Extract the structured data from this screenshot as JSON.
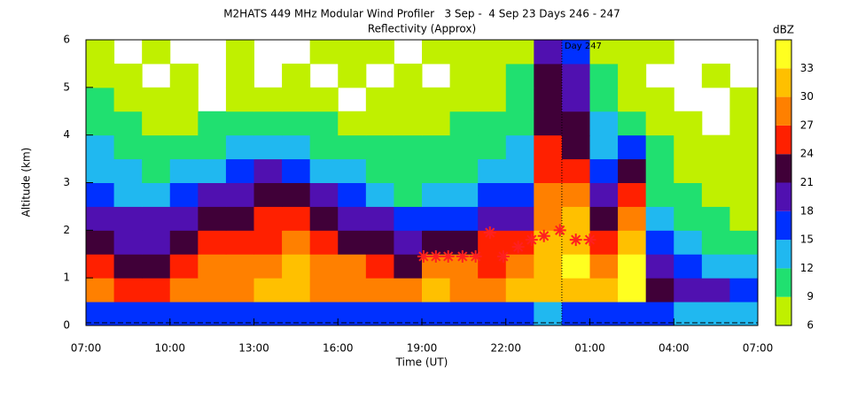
{
  "chart_data": {
    "type": "heatmap",
    "title": "M2HATS 449 MHz Modular Wind Profiler   3 Sep -  4 Sep 23 Days 246 - 247",
    "subtitle": "Reflectivity (Approx)",
    "xlabel": "Time (UT)",
    "ylabel": "Altitude (km)",
    "xlim": [
      0,
      24
    ],
    "xticks": [
      {
        "value": 0,
        "label": "07:00"
      },
      {
        "value": 3,
        "label": "10:00"
      },
      {
        "value": 6,
        "label": "13:00"
      },
      {
        "value": 9,
        "label": "16:00"
      },
      {
        "value": 12,
        "label": "19:00"
      },
      {
        "value": 15,
        "label": "22:00"
      },
      {
        "value": 18,
        "label": "01:00"
      },
      {
        "value": 21,
        "label": "04:00"
      },
      {
        "value": 24,
        "label": "07:00"
      }
    ],
    "ylim": [
      0,
      6
    ],
    "yticks": [
      0,
      1,
      2,
      3,
      4,
      5,
      6
    ],
    "x_bins": [
      0,
      1,
      2,
      3,
      4,
      5,
      6,
      7,
      8,
      9,
      10,
      11,
      12,
      13,
      14,
      15,
      16,
      17,
      18,
      19,
      20,
      21,
      22,
      23,
      24
    ],
    "y_bins": [
      0,
      0.5,
      1,
      1.5,
      2,
      2.5,
      3,
      3.5,
      4,
      4.5,
      5,
      5.5,
      6
    ],
    "z": [
      [
        15,
        15,
        15,
        15,
        15,
        15,
        15,
        15,
        15,
        15,
        15,
        15,
        15,
        15,
        15,
        15,
        14,
        15,
        15,
        15,
        15,
        14,
        14,
        14
      ],
      [
        27,
        26,
        26,
        28,
        29,
        28,
        30,
        30,
        29,
        29,
        28,
        27,
        30,
        29,
        28,
        30,
        31,
        32,
        30,
        33,
        21,
        19,
        18,
        17
      ],
      [
        24,
        21,
        22,
        25,
        28,
        27,
        29,
        30,
        28,
        28,
        26,
        23,
        29,
        27,
        26,
        29,
        31,
        33,
        29,
        33,
        18,
        16,
        12,
        13
      ],
      [
        22,
        20,
        20,
        22,
        24,
        24,
        26,
        27,
        24,
        23,
        21,
        20,
        22,
        22,
        24,
        24,
        30,
        32,
        26,
        31,
        15,
        12,
        10,
        9
      ],
      [
        20,
        19,
        19,
        20,
        21,
        22,
        24,
        24,
        21,
        20,
        19,
        15,
        16,
        17,
        19,
        20,
        28,
        30,
        23,
        29,
        12,
        10,
        9,
        8
      ],
      [
        17,
        14,
        13,
        15,
        18,
        20,
        23,
        22,
        19,
        16,
        14,
        11,
        12,
        13,
        15,
        17,
        27,
        27,
        20,
        26,
        11,
        9,
        8,
        8
      ],
      [
        14,
        12,
        11,
        12,
        14,
        17,
        19,
        15,
        14,
        12,
        11,
        10,
        10,
        11,
        12,
        13,
        26,
        25,
        16,
        22,
        10,
        8,
        7,
        8
      ],
      [
        12,
        10,
        9,
        10,
        11,
        12,
        13,
        12,
        11,
        10,
        9,
        9,
        9,
        10,
        11,
        12,
        24,
        23,
        14,
        16,
        9,
        7,
        7,
        7
      ],
      [
        10,
        9,
        8,
        8,
        9,
        10,
        10,
        9,
        9,
        8,
        8,
        8,
        8,
        9,
        9,
        11,
        23,
        22,
        12,
        11,
        8,
        7,
        null,
        7
      ],
      [
        9,
        8,
        7,
        7,
        null,
        8,
        8,
        8,
        7,
        null,
        7,
        7,
        7,
        8,
        8,
        10,
        22,
        20,
        10,
        8,
        7,
        null,
        null,
        7
      ],
      [
        8,
        7,
        null,
        7,
        null,
        7,
        null,
        7,
        null,
        7,
        null,
        7,
        null,
        7,
        8,
        9,
        21,
        18,
        9,
        7,
        null,
        null,
        7,
        null
      ],
      [
        7,
        null,
        7,
        null,
        null,
        7,
        null,
        null,
        7,
        7,
        7,
        null,
        7,
        7,
        7,
        8,
        20,
        15,
        8,
        7,
        7,
        null,
        null,
        null
      ]
    ],
    "colorbar": {
      "label": "dBZ",
      "bounds": [
        6,
        9,
        12,
        15,
        18,
        21,
        24,
        27,
        30,
        33,
        36
      ],
      "colors": [
        "#c0f000",
        "#20e070",
        "#20b8f0",
        "#0030ff",
        "#5010b0",
        "#400038",
        "#ff2000",
        "#ff8000",
        "#ffc000",
        "#ffff20"
      ],
      "ticks": [
        6,
        9,
        12,
        15,
        18,
        21,
        24,
        27,
        30,
        33
      ]
    },
    "points": {
      "color": "#ff2020",
      "x": [
        12.06,
        12.5,
        12.94,
        13.45,
        13.92,
        14.43,
        14.91,
        15.44,
        15.92,
        16.36,
        16.93,
        17.5,
        18.0
      ],
      "y": [
        1.45,
        1.45,
        1.45,
        1.45,
        1.45,
        1.95,
        1.45,
        1.65,
        1.8,
        1.88,
        2.0,
        1.8,
        1.8
      ]
    },
    "annotation": {
      "text": "Day 247",
      "x": 17
    }
  }
}
